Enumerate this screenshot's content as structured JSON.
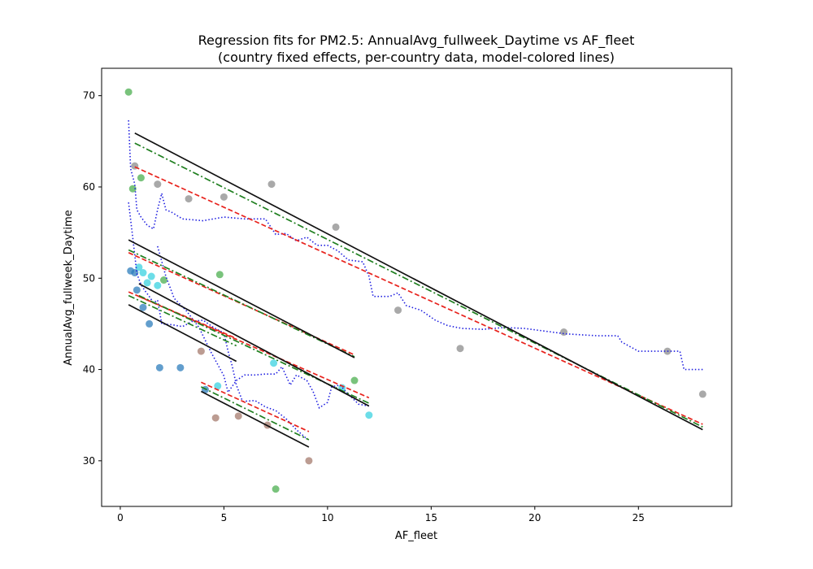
{
  "chart_data": {
    "type": "scatter",
    "title": "Regression fits for PM2.5: AnnualAvg_fullweek_Daytime vs AF_fleet",
    "subtitle": "(country fixed effects, per-country data, model-colored lines)",
    "xlabel": "AF_fleet",
    "ylabel": "AnnualAvg_fullweek_Daytime",
    "xlim": [
      -0.9,
      29.5
    ],
    "ylim": [
      25,
      73
    ],
    "xticks": [
      0,
      5,
      10,
      15,
      20,
      25
    ],
    "yticks": [
      30,
      40,
      50,
      60,
      70
    ],
    "grid": false,
    "legend": "none",
    "groups": [
      {
        "color": "#8c8c8c",
        "points": [
          [
            0.7,
            62.3
          ],
          [
            1.8,
            60.3
          ],
          [
            3.3,
            58.7
          ],
          [
            5.0,
            58.9
          ],
          [
            7.3,
            60.3
          ],
          [
            10.4,
            55.6
          ],
          [
            13.4,
            46.5
          ],
          [
            16.4,
            42.3
          ],
          [
            21.4,
            44.1
          ],
          [
            26.4,
            42.0
          ],
          [
            28.1,
            37.3
          ]
        ],
        "fits": {
          "black_solid": [
            [
              0.7,
              65.9
            ],
            [
              28.1,
              33.4
            ]
          ],
          "green_dashdot": [
            [
              0.7,
              64.8
            ],
            [
              28.1,
              33.7
            ]
          ],
          "red_dashed": [
            [
              0.7,
              62.2
            ],
            [
              28.1,
              34.0
            ]
          ]
        }
      },
      {
        "color": "#3bd2e0",
        "points": [
          [
            0.9,
            51.2
          ],
          [
            1.1,
            50.6
          ],
          [
            1.5,
            50.2
          ],
          [
            1.8,
            49.2
          ],
          [
            4.7,
            38.2
          ],
          [
            7.4,
            40.7
          ],
          [
            10.7,
            38.0
          ],
          [
            12.0,
            35.0
          ],
          [
            1.3,
            49.5
          ]
        ],
        "fits": {
          "black_solid": [
            [
              0.9,
              49.4
            ],
            [
              12.0,
              36.0
            ]
          ],
          "green_dashdot": [
            [
              0.9,
              48.1
            ],
            [
              12.0,
              36.3
            ]
          ],
          "red_dashed": [
            [
              0.9,
              48.0
            ],
            [
              12.0,
              36.9
            ]
          ]
        }
      },
      {
        "color": "#2e7ebc",
        "points": [
          [
            0.5,
            50.8
          ],
          [
            0.7,
            50.6
          ],
          [
            0.8,
            48.7
          ],
          [
            1.1,
            46.8
          ],
          [
            1.4,
            45.0
          ],
          [
            1.9,
            40.2
          ],
          [
            2.9,
            40.2
          ],
          [
            4.1,
            37.8
          ]
        ],
        "fits": {
          "black_solid": [
            [
              0.4,
              47.1
            ],
            [
              5.6,
              40.9
            ]
          ],
          "green_dashdot": [
            [
              0.4,
              48.1
            ],
            [
              5.6,
              42.6
            ]
          ],
          "red_dashed": [
            [
              0.4,
              48.5
            ],
            [
              5.6,
              43.4
            ]
          ]
        }
      },
      {
        "color": "#4caf50",
        "points": [
          [
            0.4,
            70.4
          ],
          [
            0.6,
            59.8
          ],
          [
            1.0,
            61.0
          ],
          [
            2.1,
            49.8
          ],
          [
            4.8,
            50.4
          ],
          [
            11.3,
            38.8
          ],
          [
            7.5,
            26.9
          ]
        ],
        "fits": {
          "black_solid": [
            [
              0.4,
              54.2
            ],
            [
              11.3,
              41.3
            ]
          ],
          "green_dashdot": [
            [
              0.4,
              53.1
            ],
            [
              11.3,
              41.4
            ]
          ],
          "red_dashed": [
            [
              0.4,
              52.8
            ],
            [
              11.3,
              41.6
            ]
          ]
        }
      },
      {
        "color": "#a57b6e",
        "points": [
          [
            3.9,
            42.0
          ],
          [
            4.6,
            34.7
          ],
          [
            5.7,
            34.9
          ],
          [
            7.1,
            33.9
          ],
          [
            9.1,
            30.0
          ]
        ],
        "fits": {
          "black_solid": [
            [
              3.9,
              37.6
            ],
            [
              9.1,
              31.5
            ]
          ],
          "green_dashdot": [
            [
              3.9,
              38.1
            ],
            [
              9.1,
              32.3
            ]
          ],
          "red_dashed": [
            [
              3.9,
              38.6
            ],
            [
              9.1,
              33.2
            ]
          ]
        }
      }
    ],
    "blue_dotted_curves": [
      [
        [
          0.4,
          67.3
        ],
        [
          0.5,
          62
        ],
        [
          0.7,
          60.3
        ],
        [
          0.8,
          57.5
        ],
        [
          1.0,
          56.7
        ],
        [
          1.3,
          55.8
        ],
        [
          1.6,
          55.4
        ],
        [
          1.8,
          57.5
        ],
        [
          2.0,
          59.3
        ],
        [
          2.2,
          57.5
        ],
        [
          2.5,
          57.2
        ],
        [
          3.0,
          56.5
        ],
        [
          3.5,
          56.4
        ],
        [
          4.0,
          56.3
        ],
        [
          4.5,
          56.5
        ],
        [
          5.0,
          56.7
        ],
        [
          6.0,
          56.5
        ],
        [
          7.0,
          56.5
        ],
        [
          7.5,
          54.8
        ],
        [
          8.0,
          54.9
        ],
        [
          8.5,
          54.1
        ],
        [
          9.0,
          54.5
        ],
        [
          9.5,
          53.6
        ],
        [
          10.0,
          53.6
        ],
        [
          10.5,
          53.0
        ],
        [
          11.0,
          52.0
        ],
        [
          11.7,
          51.8
        ],
        [
          12.0,
          50.2
        ],
        [
          12.2,
          48.0
        ],
        [
          13.0,
          48.0
        ],
        [
          13.4,
          48.4
        ],
        [
          13.8,
          47.0
        ],
        [
          14.5,
          46.5
        ],
        [
          15.2,
          45.4
        ],
        [
          15.8,
          44.8
        ],
        [
          16.5,
          44.5
        ],
        [
          17.5,
          44.4
        ],
        [
          18.5,
          44.6
        ],
        [
          19.5,
          44.5
        ],
        [
          20.5,
          44.2
        ],
        [
          21.5,
          43.9
        ],
        [
          23,
          43.7
        ],
        [
          24,
          43.7
        ],
        [
          24.2,
          43.0
        ],
        [
          25,
          42.0
        ],
        [
          26,
          42.0
        ],
        [
          27,
          42.0
        ],
        [
          27.2,
          40.0
        ],
        [
          28.1,
          40.0
        ]
      ],
      [
        [
          0.4,
          58.3
        ],
        [
          0.6,
          54.5
        ],
        [
          0.8,
          50.5
        ],
        [
          1.0,
          49.3
        ],
        [
          1.2,
          48.6
        ],
        [
          1.4,
          48.0
        ],
        [
          1.6,
          47.3
        ],
        [
          1.8,
          47.6
        ],
        [
          2.0,
          45.0
        ],
        [
          2.5,
          44.9
        ],
        [
          3.0,
          44.7
        ],
        [
          3.5,
          45.3
        ],
        [
          4.0,
          45.4
        ],
        [
          4.5,
          44.6
        ],
        [
          5.0,
          44.0
        ],
        [
          5.2,
          42.0
        ],
        [
          5.4,
          40.4
        ],
        [
          5.6,
          38.3
        ],
        [
          5.9,
          36.5
        ],
        [
          6.5,
          36.6
        ],
        [
          7.0,
          35.9
        ],
        [
          7.5,
          35.5
        ],
        [
          8.0,
          34.6
        ],
        [
          8.5,
          33.4
        ],
        [
          9.0,
          32.4
        ]
      ],
      [
        [
          1.8,
          53.5
        ],
        [
          2.2,
          50.2
        ],
        [
          2.6,
          47.8
        ],
        [
          3.2,
          46.4
        ],
        [
          3.8,
          44.6
        ],
        [
          4.4,
          41.8
        ],
        [
          5.0,
          39.3
        ],
        [
          5.2,
          37.5
        ],
        [
          5.6,
          38.8
        ],
        [
          6.0,
          39.4
        ],
        [
          6.5,
          39.4
        ],
        [
          7.0,
          39.5
        ],
        [
          7.5,
          39.5
        ],
        [
          7.8,
          40.3
        ],
        [
          8.2,
          38.3
        ],
        [
          8.5,
          39.4
        ],
        [
          9.0,
          38.8
        ],
        [
          9.3,
          37.6
        ],
        [
          9.6,
          35.8
        ],
        [
          10.0,
          36.4
        ],
        [
          10.2,
          38.1
        ],
        [
          10.6,
          38.3
        ],
        [
          11.0,
          37.3
        ],
        [
          11.5,
          36.2
        ],
        [
          12.0,
          36.0
        ]
      ]
    ]
  }
}
